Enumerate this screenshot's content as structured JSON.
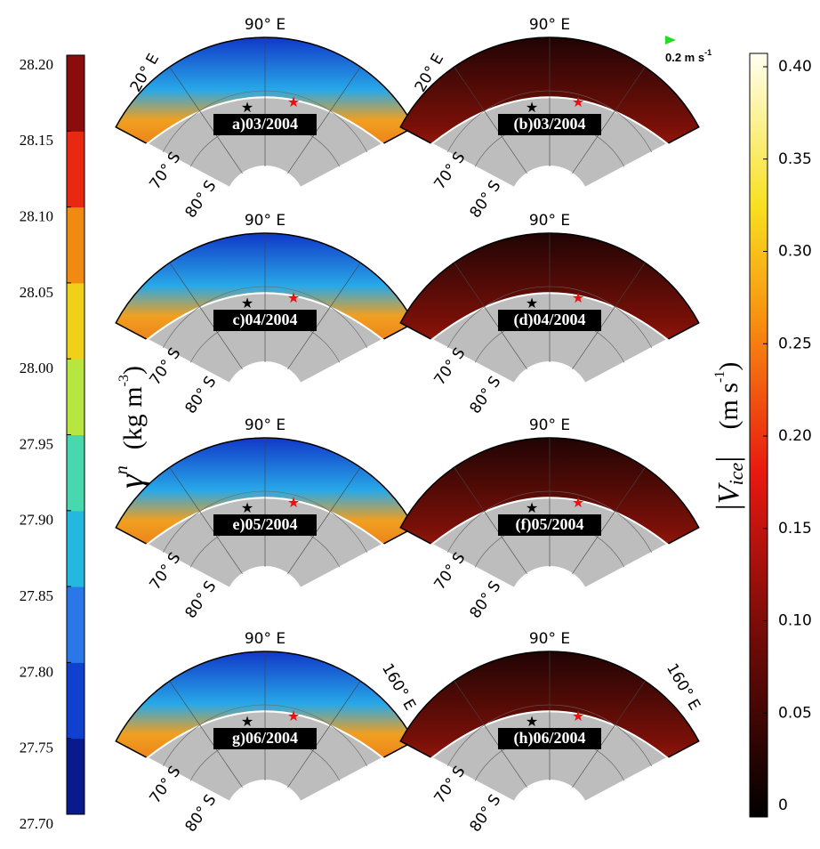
{
  "left_colorbar": {
    "label": "γ",
    "label_sup": "n",
    "unit": "(kg  m",
    "unit_sup": "-3",
    "unit_end": ")",
    "lim": [
      27.7,
      28.2
    ],
    "ticks": [
      {
        "value": 27.7,
        "label": "27.70"
      },
      27.75,
      {
        "value": 27.8,
        "label": "27.80"
      },
      27.85,
      {
        "value": 27.9,
        "label": "27.90"
      },
      27.95,
      {
        "value": 28,
        "label": "28.00"
      },
      28.05,
      {
        "value": 28.1,
        "label": "28.10"
      },
      28.15,
      {
        "value": 28.2,
        "label": "28.20"
      }
    ],
    "colors": [
      "#0a1a8c",
      "#1040d0",
      "#2a78e8",
      "#24b8e0",
      "#48d8b0",
      "#b8e640",
      "#f0d018",
      "#f08a10",
      "#e82810",
      "#8a0c0c"
    ]
  },
  "right_colorbar": {
    "label": "V",
    "label_sub": "ice",
    "unit": "(m s",
    "unit_sup": "-1",
    "unit_end": ")",
    "lim": [
      0,
      0.4
    ],
    "ticks": [
      0,
      0.05,
      {
        "value": 0.1,
        "label": "0.10"
      },
      0.15,
      {
        "value": 0.2,
        "label": "0.20"
      },
      0.25,
      {
        "value": 0.3,
        "label": "0.30"
      },
      0.35,
      {
        "value": 0.4,
        "label": "0.40"
      }
    ]
  },
  "vector_scale": "0.2 m s",
  "vector_scale_sup": "-1",
  "panels": [
    {
      "label": "a)03/2004",
      "north": "90° E",
      "west": "20° E",
      "lat1": "70° S",
      "lat2": "80° S"
    },
    {
      "label": "(b)03/2004",
      "north": "90° E",
      "west": "20° E",
      "lat1": "70° S",
      "lat2": "80° S"
    },
    {
      "label": "c)04/2004",
      "north": "90° E",
      "lat1": "70° S",
      "lat2": "80° S"
    },
    {
      "label": "(d)04/2004",
      "north": "90° E",
      "lat1": "70° S",
      "lat2": "80° S"
    },
    {
      "label": "e)05/2004",
      "north": "90° E",
      "lat1": "70° S",
      "lat2": "80° S"
    },
    {
      "label": "(f)05/2004",
      "north": "90° E",
      "lat1": "70° S",
      "lat2": "80° S"
    },
    {
      "label": "g)06/2004",
      "north": "90° E",
      "east": "160° E",
      "lat1": "70° S",
      "lat2": "80° S"
    },
    {
      "label": "(h)06/2004",
      "north": "90° E",
      "east": "160° E",
      "lat1": "70° S",
      "lat2": "80° S"
    }
  ]
}
